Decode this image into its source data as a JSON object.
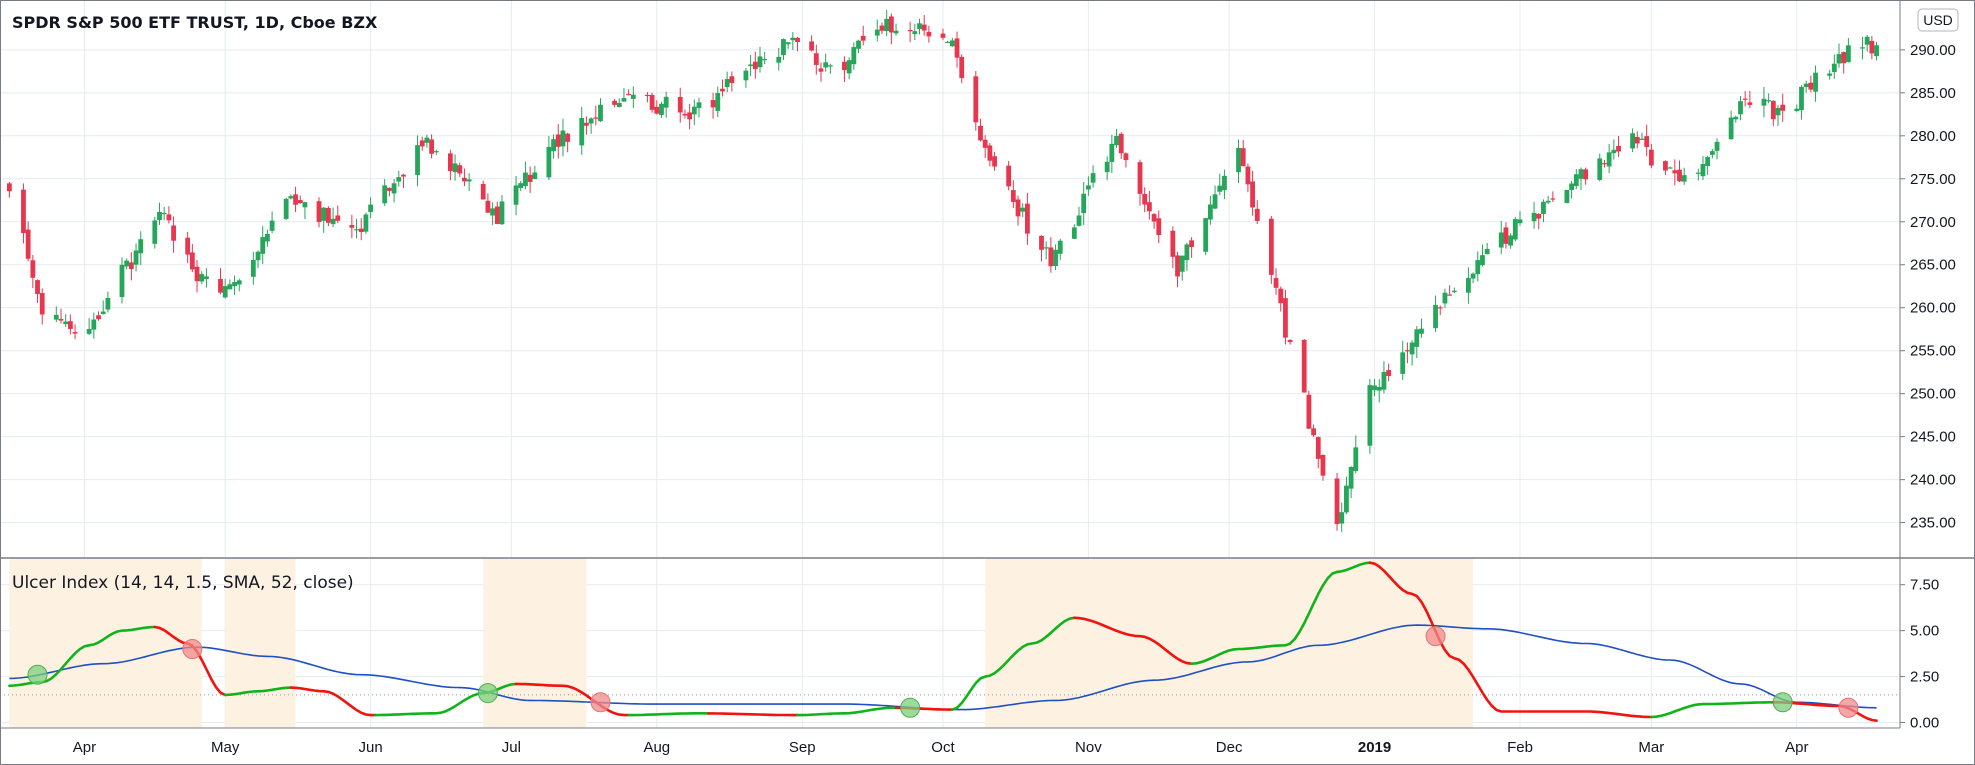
{
  "header": {
    "symbol_title": "SPDR S&P 500 ETF TRUST, 1D, Cboe BZX",
    "currency": "USD"
  },
  "indicator": {
    "title": "Ulcer Index (14, 14, 1.5, SMA, 52, close)"
  },
  "colors": {
    "up": "#26a65b",
    "down": "#e8364f",
    "ui_up": "#11b31a",
    "ui_down": "#f0130f",
    "signal": "#1e4fc4",
    "shade": "#fdf1e2",
    "grid": "#e5ecf0",
    "buy_marker": "#7ccf7c",
    "sell_marker": "#f08a8a"
  },
  "chart_data": [
    {
      "type": "candlestick",
      "title": "SPDR S&P 500 ETF TRUST, 1D, Cboe BZX",
      "x_ticks": [
        "Apr",
        "May",
        "Jun",
        "Jul",
        "Aug",
        "Sep",
        "Oct",
        "Nov",
        "Dec",
        "2019",
        "Feb",
        "Mar",
        "Apr"
      ],
      "y_ticks": [
        "235.00",
        "240.00",
        "245.00",
        "250.00",
        "255.00",
        "260.00",
        "265.00",
        "270.00",
        "275.00",
        "280.00",
        "285.00",
        "290.00"
      ],
      "ylim": [
        231.0,
        295.8
      ],
      "grid": true,
      "anchor_closes": [
        {
          "date": "2018-03-16",
          "close": 274.0
        },
        {
          "date": "2018-03-23",
          "close": 259.0
        },
        {
          "date": "2018-04-02",
          "close": 257.5
        },
        {
          "date": "2018-04-09",
          "close": 264.0
        },
        {
          "date": "2018-04-18",
          "close": 271.0
        },
        {
          "date": "2018-04-25",
          "close": 263.5
        },
        {
          "date": "2018-05-03",
          "close": 262.5
        },
        {
          "date": "2018-05-14",
          "close": 272.5
        },
        {
          "date": "2018-05-29",
          "close": 269.0
        },
        {
          "date": "2018-06-12",
          "close": 279.0
        },
        {
          "date": "2018-06-20",
          "close": 276.0
        },
        {
          "date": "2018-06-28",
          "close": 270.5
        },
        {
          "date": "2018-07-10",
          "close": 279.5
        },
        {
          "date": "2018-07-25",
          "close": 284.0
        },
        {
          "date": "2018-08-10",
          "close": 283.0
        },
        {
          "date": "2018-08-29",
          "close": 291.0
        },
        {
          "date": "2018-09-07",
          "close": 287.5
        },
        {
          "date": "2018-09-20",
          "close": 293.0
        },
        {
          "date": "2018-10-03",
          "close": 291.5
        },
        {
          "date": "2018-10-10",
          "close": 278.0
        },
        {
          "date": "2018-10-24",
          "close": 265.0
        },
        {
          "date": "2018-11-07",
          "close": 280.0
        },
        {
          "date": "2018-11-20",
          "close": 264.5
        },
        {
          "date": "2018-12-03",
          "close": 279.5
        },
        {
          "date": "2018-12-10",
          "close": 263.5
        },
        {
          "date": "2018-12-24",
          "close": 234.5
        },
        {
          "date": "2018-12-31",
          "close": 250.0
        },
        {
          "date": "2019-01-15",
          "close": 260.0
        },
        {
          "date": "2019-01-31",
          "close": 269.5
        },
        {
          "date": "2019-02-25",
          "close": 279.5
        },
        {
          "date": "2019-03-08",
          "close": 274.5
        },
        {
          "date": "2019-03-21",
          "close": 284.0
        },
        {
          "date": "2019-03-29",
          "close": 282.5
        },
        {
          "date": "2019-04-12",
          "close": 290.0
        },
        {
          "date": "2019-04-18",
          "close": 290.5
        }
      ]
    },
    {
      "type": "line",
      "title": "Ulcer Index (14, 14, 1.5, SMA, 52, close)",
      "y_ticks": [
        "0.00",
        "2.50",
        "5.00",
        "7.50"
      ],
      "ylim": [
        -0.3,
        8.9
      ],
      "threshold": 1.5,
      "series": [
        {
          "values": [
            {
              "date": "2018-03-16",
              "v": 2.0
            },
            {
              "date": "2018-03-23",
              "v": 2.2
            },
            {
              "date": "2018-04-02",
              "v": 4.2
            },
            {
              "date": "2018-04-09",
              "v": 5.0
            },
            {
              "date": "2018-04-16",
              "v": 5.2
            },
            {
              "date": "2018-04-23",
              "v": 4.3
            },
            {
              "date": "2018-05-01",
              "v": 1.5
            },
            {
              "date": "2018-05-08",
              "v": 1.7
            },
            {
              "date": "2018-05-15",
              "v": 1.9
            },
            {
              "date": "2018-05-22",
              "v": 1.7
            },
            {
              "date": "2018-06-01",
              "v": 0.4
            },
            {
              "date": "2018-06-15",
              "v": 0.5
            },
            {
              "date": "2018-06-25",
              "v": 1.6
            },
            {
              "date": "2018-07-02",
              "v": 2.1
            },
            {
              "date": "2018-07-12",
              "v": 2.0
            },
            {
              "date": "2018-07-25",
              "v": 0.4
            },
            {
              "date": "2018-08-10",
              "v": 0.5
            },
            {
              "date": "2018-08-31",
              "v": 0.4
            },
            {
              "date": "2018-09-10",
              "v": 0.5
            },
            {
              "date": "2018-09-20",
              "v": 0.8
            },
            {
              "date": "2018-10-03",
              "v": 0.7
            },
            {
              "date": "2018-10-10",
              "v": 2.5
            },
            {
              "date": "2018-10-20",
              "v": 4.3
            },
            {
              "date": "2018-10-29",
              "v": 5.7
            },
            {
              "date": "2018-11-12",
              "v": 4.7
            },
            {
              "date": "2018-11-23",
              "v": 3.2
            },
            {
              "date": "2018-12-03",
              "v": 4.0
            },
            {
              "date": "2018-12-13",
              "v": 4.2
            },
            {
              "date": "2018-12-24",
              "v": 8.2
            },
            {
              "date": "2018-12-31",
              "v": 8.7
            },
            {
              "date": "2019-01-09",
              "v": 7.0
            },
            {
              "date": "2019-01-18",
              "v": 3.5
            },
            {
              "date": "2019-01-28",
              "v": 0.6
            },
            {
              "date": "2019-02-15",
              "v": 0.6
            },
            {
              "date": "2019-03-01",
              "v": 0.3
            },
            {
              "date": "2019-03-12",
              "v": 1.0
            },
            {
              "date": "2019-03-27",
              "v": 1.1
            },
            {
              "date": "2019-04-10",
              "v": 0.9
            },
            {
              "date": "2019-04-18",
              "v": 0.1
            }
          ]
        },
        {
          "values": [
            {
              "date": "2018-03-16",
              "v": 2.4
            },
            {
              "date": "2018-04-05",
              "v": 3.2
            },
            {
              "date": "2018-04-25",
              "v": 4.1
            },
            {
              "date": "2018-05-10",
              "v": 3.6
            },
            {
              "date": "2018-05-30",
              "v": 2.6
            },
            {
              "date": "2018-06-20",
              "v": 1.9
            },
            {
              "date": "2018-07-05",
              "v": 1.2
            },
            {
              "date": "2018-08-01",
              "v": 1.0
            },
            {
              "date": "2018-09-10",
              "v": 1.0
            },
            {
              "date": "2018-10-05",
              "v": 0.7
            },
            {
              "date": "2018-10-25",
              "v": 1.2
            },
            {
              "date": "2018-11-15",
              "v": 2.3
            },
            {
              "date": "2018-12-05",
              "v": 3.3
            },
            {
              "date": "2018-12-20",
              "v": 4.2
            },
            {
              "date": "2019-01-10",
              "v": 5.3
            },
            {
              "date": "2019-01-25",
              "v": 5.1
            },
            {
              "date": "2019-02-15",
              "v": 4.3
            },
            {
              "date": "2019-03-05",
              "v": 3.4
            },
            {
              "date": "2019-03-20",
              "v": 2.1
            },
            {
              "date": "2019-04-01",
              "v": 1.1
            },
            {
              "date": "2019-04-18",
              "v": 0.8
            }
          ]
        }
      ],
      "shaded_ranges": [
        [
          "2018-03-16",
          "2018-04-26"
        ],
        [
          "2018-05-01",
          "2018-05-16"
        ],
        [
          "2018-06-25",
          "2018-07-17"
        ],
        [
          "2018-10-10",
          "2019-01-22"
        ]
      ],
      "markers": [
        {
          "date": "2018-03-22",
          "v": 2.6,
          "kind": "buy"
        },
        {
          "date": "2018-04-24",
          "v": 4.0,
          "kind": "sell"
        },
        {
          "date": "2018-06-26",
          "v": 1.6,
          "kind": "buy"
        },
        {
          "date": "2018-07-20",
          "v": 1.1,
          "kind": "sell"
        },
        {
          "date": "2018-09-24",
          "v": 0.8,
          "kind": "buy"
        },
        {
          "date": "2019-01-14",
          "v": 4.7,
          "kind": "sell"
        },
        {
          "date": "2019-03-29",
          "v": 1.1,
          "kind": "buy"
        },
        {
          "date": "2019-04-12",
          "v": 0.8,
          "kind": "sell"
        }
      ]
    }
  ]
}
